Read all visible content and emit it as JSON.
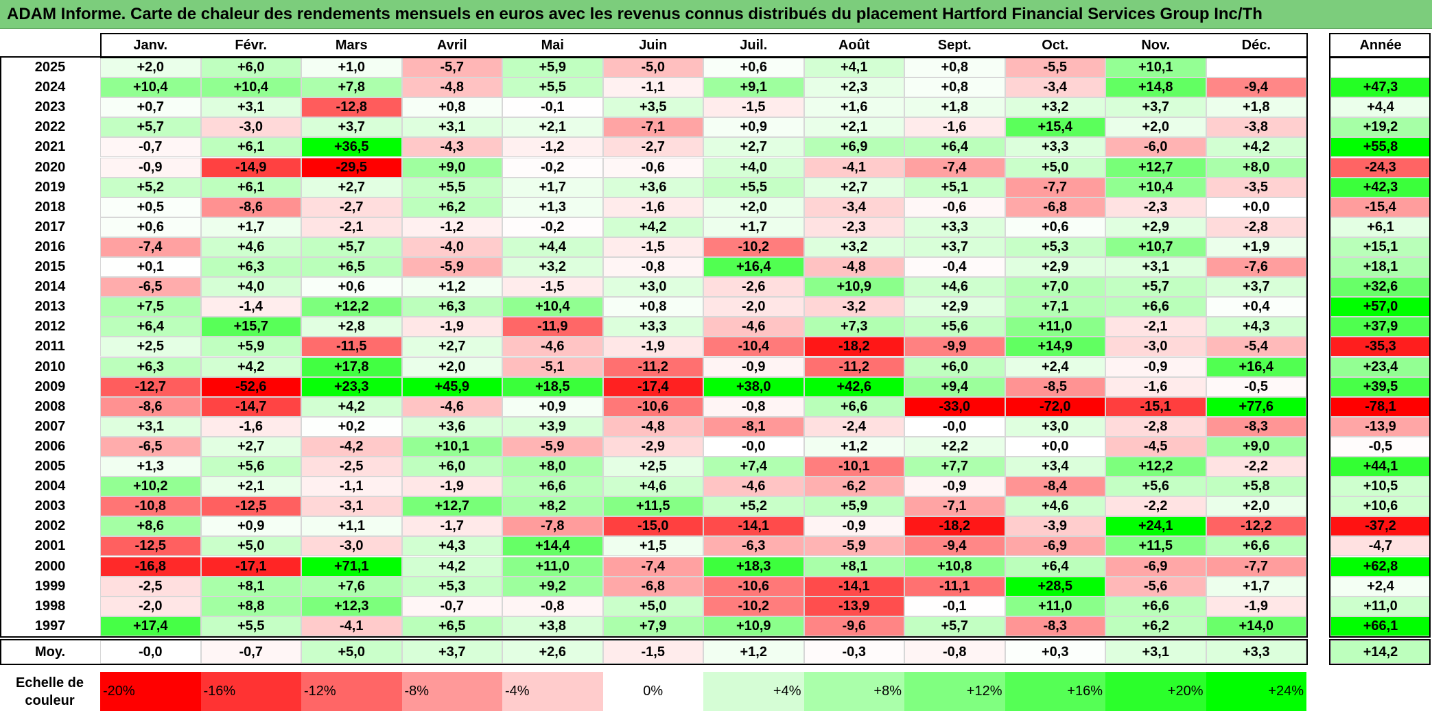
{
  "title": "ADAM Informe. Carte de chaleur des rendements mensuels en euros avec les revenus connus distribués du placement Hartford Financial Services Group Inc/Th",
  "chart_data": {
    "type": "heatmap",
    "columns": [
      "Janv.",
      "Févr.",
      "Mars",
      "Avril",
      "Mai",
      "Juin",
      "Juil.",
      "Août",
      "Sept.",
      "Oct.",
      "Nov.",
      "Déc."
    ],
    "year_header": "Année",
    "rows": [
      {
        "label": "2025",
        "values": [
          "+2,0",
          "+6,0",
          "+1,0",
          "-5,7",
          "+5,9",
          "-5,0",
          "+0,6",
          "+4,1",
          "+0,8",
          "-5,5",
          "+10,1",
          ""
        ],
        "year": ""
      },
      {
        "label": "2024",
        "values": [
          "+10,4",
          "+10,4",
          "+7,8",
          "-4,8",
          "+5,5",
          "-1,1",
          "+9,1",
          "+2,3",
          "+0,8",
          "-3,4",
          "+14,8",
          "-9,4"
        ],
        "year": "+47,3"
      },
      {
        "label": "2023",
        "values": [
          "+0,7",
          "+3,1",
          "-12,8",
          "+0,8",
          "-0,1",
          "+3,5",
          "-1,5",
          "+1,6",
          "+1,8",
          "+3,2",
          "+3,7",
          "+1,8"
        ],
        "year": "+4,4"
      },
      {
        "label": "2022",
        "values": [
          "+5,7",
          "-3,0",
          "+3,7",
          "+3,1",
          "+2,1",
          "-7,1",
          "+0,9",
          "+2,1",
          "-1,6",
          "+15,4",
          "+2,0",
          "-3,8"
        ],
        "year": "+19,2"
      },
      {
        "label": "2021",
        "values": [
          "-0,7",
          "+6,1",
          "+36,5",
          "-4,3",
          "-1,2",
          "-2,7",
          "+2,7",
          "+6,9",
          "+6,4",
          "+3,3",
          "-6,0",
          "+4,2"
        ],
        "year": "+55,8"
      },
      {
        "label": "2020",
        "values": [
          "-0,9",
          "-14,9",
          "-29,5",
          "+9,0",
          "-0,2",
          "-0,6",
          "+4,0",
          "-4,1",
          "-7,4",
          "+5,0",
          "+12,7",
          "+8,0"
        ],
        "year": "-24,3"
      },
      {
        "label": "2019",
        "values": [
          "+5,2",
          "+6,1",
          "+2,7",
          "+5,5",
          "+1,7",
          "+3,6",
          "+5,5",
          "+2,7",
          "+5,1",
          "-7,7",
          "+10,4",
          "-3,5"
        ],
        "year": "+42,3"
      },
      {
        "label": "2018",
        "values": [
          "+0,5",
          "-8,6",
          "-2,7",
          "+6,2",
          "+1,3",
          "-1,6",
          "+2,0",
          "-3,4",
          "-0,6",
          "-6,8",
          "-2,3",
          "+0,0"
        ],
        "year": "-15,4"
      },
      {
        "label": "2017",
        "values": [
          "+0,6",
          "+1,7",
          "-2,1",
          "-1,2",
          "-0,2",
          "+4,2",
          "+1,7",
          "-2,3",
          "+3,3",
          "+0,6",
          "+2,9",
          "-2,8"
        ],
        "year": "+6,1"
      },
      {
        "label": "2016",
        "values": [
          "-7,4",
          "+4,6",
          "+5,7",
          "-4,0",
          "+4,4",
          "-1,5",
          "-10,2",
          "+3,2",
          "+3,7",
          "+5,3",
          "+10,7",
          "+1,9"
        ],
        "year": "+15,1"
      },
      {
        "label": "2015",
        "values": [
          "+0,1",
          "+6,3",
          "+6,5",
          "-5,9",
          "+3,2",
          "-0,8",
          "+16,4",
          "-4,8",
          "-0,4",
          "+2,9",
          "+3,1",
          "-7,6"
        ],
        "year": "+18,1"
      },
      {
        "label": "2014",
        "values": [
          "-6,5",
          "+4,0",
          "+0,6",
          "+1,2",
          "-1,5",
          "+3,0",
          "-2,6",
          "+10,9",
          "+4,6",
          "+7,0",
          "+5,7",
          "+3,7"
        ],
        "year": "+32,6"
      },
      {
        "label": "2013",
        "values": [
          "+7,5",
          "-1,4",
          "+12,2",
          "+6,3",
          "+10,4",
          "+0,8",
          "-2,0",
          "-3,2",
          "+2,9",
          "+7,1",
          "+6,6",
          "+0,4"
        ],
        "year": "+57,0"
      },
      {
        "label": "2012",
        "values": [
          "+6,4",
          "+15,7",
          "+2,8",
          "-1,9",
          "-11,9",
          "+3,3",
          "-4,6",
          "+7,3",
          "+5,6",
          "+11,0",
          "-2,1",
          "+4,3"
        ],
        "year": "+37,9"
      },
      {
        "label": "2011",
        "values": [
          "+2,5",
          "+5,9",
          "-11,5",
          "+2,7",
          "-4,6",
          "-1,9",
          "-10,4",
          "-18,2",
          "-9,9",
          "+14,9",
          "-3,0",
          "-5,4"
        ],
        "year": "-35,3"
      },
      {
        "label": "2010",
        "values": [
          "+6,3",
          "+4,2",
          "+17,8",
          "+2,0",
          "-5,1",
          "-11,2",
          "-0,9",
          "-11,2",
          "+6,0",
          "+2,4",
          "-0,9",
          "+16,4"
        ],
        "year": "+23,4"
      },
      {
        "label": "2009",
        "values": [
          "-12,7",
          "-52,6",
          "+23,3",
          "+45,9",
          "+18,5",
          "-17,4",
          "+38,0",
          "+42,6",
          "+9,4",
          "-8,5",
          "-1,6",
          "-0,5"
        ],
        "year": "+39,5"
      },
      {
        "label": "2008",
        "values": [
          "-8,6",
          "-14,7",
          "+4,2",
          "-4,6",
          "+0,9",
          "-10,6",
          "-0,8",
          "+6,6",
          "-33,0",
          "-72,0",
          "-15,1",
          "+77,6"
        ],
        "year": "-78,1"
      },
      {
        "label": "2007",
        "values": [
          "+3,1",
          "-1,6",
          "+0,2",
          "+3,6",
          "+3,9",
          "-4,8",
          "-8,1",
          "-2,4",
          "-0,0",
          "+3,0",
          "-2,8",
          "-8,3"
        ],
        "year": "-13,9"
      },
      {
        "label": "2006",
        "values": [
          "-6,5",
          "+2,7",
          "-4,2",
          "+10,1",
          "-5,9",
          "-2,9",
          "-0,0",
          "+1,2",
          "+2,2",
          "+0,0",
          "-4,5",
          "+9,0"
        ],
        "year": "-0,5"
      },
      {
        "label": "2005",
        "values": [
          "+1,3",
          "+5,6",
          "-2,5",
          "+6,0",
          "+8,0",
          "+2,5",
          "+7,4",
          "-10,1",
          "+7,7",
          "+3,4",
          "+12,2",
          "-2,2"
        ],
        "year": "+44,1"
      },
      {
        "label": "2004",
        "values": [
          "+10,2",
          "+2,1",
          "-1,1",
          "-1,9",
          "+6,6",
          "+4,6",
          "-4,6",
          "-6,2",
          "-0,9",
          "-8,4",
          "+5,6",
          "+5,8"
        ],
        "year": "+10,5"
      },
      {
        "label": "2003",
        "values": [
          "-10,8",
          "-12,5",
          "-3,1",
          "+12,7",
          "+8,2",
          "+11,5",
          "+5,2",
          "+5,9",
          "-7,1",
          "+4,6",
          "-2,2",
          "+2,0"
        ],
        "year": "+10,6"
      },
      {
        "label": "2002",
        "values": [
          "+8,6",
          "+0,9",
          "+1,1",
          "-1,7",
          "-7,8",
          "-15,0",
          "-14,1",
          "-0,9",
          "-18,2",
          "-3,9",
          "+24,1",
          "-12,2"
        ],
        "year": "-37,2"
      },
      {
        "label": "2001",
        "values": [
          "-12,5",
          "+5,0",
          "-3,0",
          "+4,3",
          "+14,4",
          "+1,5",
          "-6,3",
          "-5,9",
          "-9,4",
          "-6,9",
          "+11,5",
          "+6,6"
        ],
        "year": "-4,7"
      },
      {
        "label": "2000",
        "values": [
          "-16,8",
          "-17,1",
          "+71,1",
          "+4,2",
          "+11,0",
          "-7,4",
          "+18,3",
          "+8,1",
          "+10,8",
          "+6,4",
          "-6,9",
          "-7,7"
        ],
        "year": "+62,8"
      },
      {
        "label": "1999",
        "values": [
          "-2,5",
          "+8,1",
          "+7,6",
          "+5,3",
          "+9,2",
          "-6,8",
          "-10,6",
          "-14,1",
          "-11,1",
          "+28,5",
          "-5,6",
          "+1,7"
        ],
        "year": "+2,4"
      },
      {
        "label": "1998",
        "values": [
          "-2,0",
          "+8,8",
          "+12,3",
          "-0,7",
          "-0,8",
          "+5,0",
          "-10,2",
          "-13,9",
          "-0,1",
          "+11,0",
          "+6,6",
          "-1,9"
        ],
        "year": "+11,0"
      },
      {
        "label": "1997",
        "values": [
          "+17,4",
          "+5,5",
          "-4,1",
          "+6,5",
          "+3,8",
          "+7,9",
          "+10,9",
          "-9,6",
          "+5,7",
          "-8,3",
          "+6,2",
          "+14,0"
        ],
        "year": "+66,1"
      }
    ],
    "average": {
      "label": "Moy.",
      "values": [
        "-0,0",
        "-0,7",
        "+5,0",
        "+3,7",
        "+2,6",
        "-1,5",
        "+1,2",
        "-0,3",
        "-0,8",
        "+0,3",
        "+3,1",
        "+3,3"
      ],
      "year": "+14,2"
    },
    "scale": {
      "label": "Echelle de couleur",
      "steps": [
        {
          "text": "-20%",
          "value": -20,
          "color": "#ff0000"
        },
        {
          "text": "-16%",
          "value": -16,
          "color": "#ff3333"
        },
        {
          "text": "-12%",
          "value": -12,
          "color": "#ff6666"
        },
        {
          "text": "-8%",
          "value": -8,
          "color": "#ff9999"
        },
        {
          "text": "-4%",
          "value": -4,
          "color": "#ffcccc"
        },
        {
          "text": "0%",
          "value": 0,
          "color": "#ffffff"
        },
        {
          "text": "+4%",
          "value": 4,
          "color": "#d5fdd5"
        },
        {
          "text": "+8%",
          "value": 8,
          "color": "#aaffaa"
        },
        {
          "text": "+12%",
          "value": 12,
          "color": "#80ff80"
        },
        {
          "text": "+16%",
          "value": 16,
          "color": "#55ff55"
        },
        {
          "text": "+20%",
          "value": 20,
          "color": "#2bff2b"
        },
        {
          "text": "+24%",
          "value": 24,
          "color": "#00ff00"
        }
      ]
    },
    "year_scale": {
      "neg_max": 40,
      "pos_max": 55
    }
  }
}
